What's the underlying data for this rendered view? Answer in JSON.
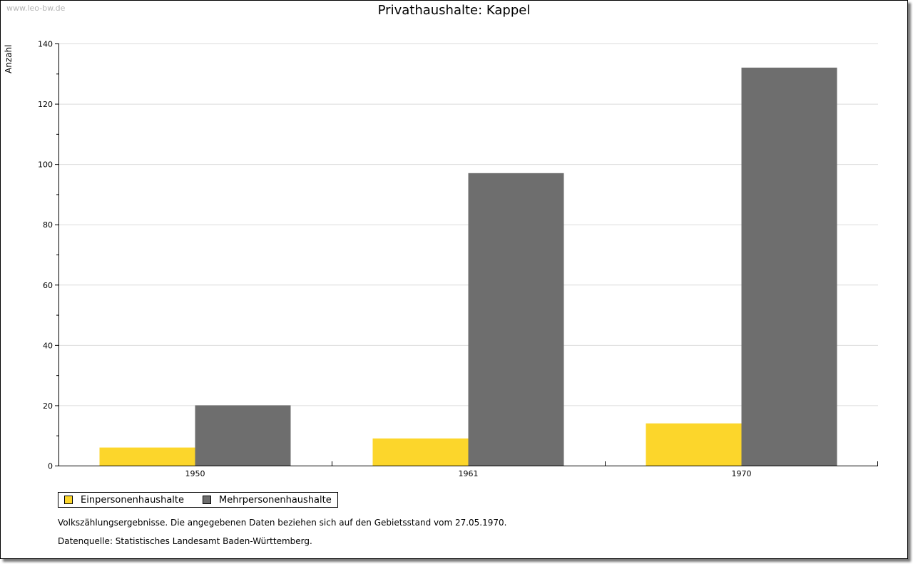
{
  "watermark": "www.leo-bw.de",
  "chart_data": {
    "type": "bar",
    "title": "Privathaushalte: Kappel",
    "xlabel": "",
    "ylabel": "Anzahl",
    "categories": [
      "1950",
      "1961",
      "1970"
    ],
    "series": [
      {
        "name": "Einpersonenhaushalte",
        "color": "#fcd62b",
        "values": [
          6,
          9,
          14
        ]
      },
      {
        "name": "Mehrpersonenhaushalte",
        "color": "#6e6e6e",
        "values": [
          20,
          97,
          132
        ]
      }
    ],
    "ylim": [
      0,
      140
    ],
    "yticks": [
      0,
      20,
      40,
      60,
      80,
      100,
      120,
      140
    ],
    "grid": true,
    "legend": "bottom-left"
  },
  "notes": {
    "line1": "Volkszählungsergebnisse. Die angegebenen Daten beziehen sich auf den Gebietsstand vom 27.05.1970.",
    "line2": "Datenquelle: Statistisches Landesamt Baden-Württemberg."
  }
}
